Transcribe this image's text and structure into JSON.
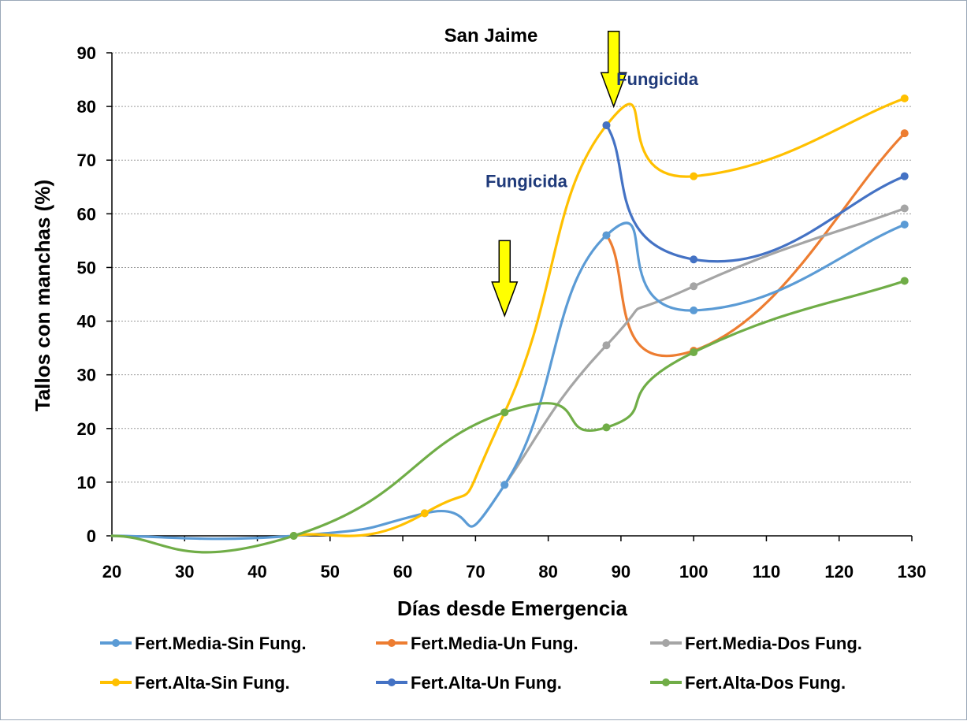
{
  "chart_data": {
    "type": "line",
    "title": "San Jaime",
    "xlabel": "Días desde Emergencia",
    "ylabel": "Tallos con manchas (%)",
    "xlim": [
      20,
      130
    ],
    "ylim": [
      0,
      90
    ],
    "xticks": [
      20,
      30,
      40,
      50,
      60,
      70,
      80,
      90,
      100,
      110,
      120,
      130
    ],
    "yticks": [
      0,
      10,
      20,
      30,
      40,
      50,
      60,
      70,
      80,
      90
    ],
    "grid": "horizontal dotted",
    "legend_position": "bottom",
    "series": [
      {
        "name": "Fert.Media-Sin Fung.",
        "color": "#5b9bd5",
        "x": [
          20,
          45,
          63,
          74,
          88,
          100,
          129
        ],
        "y": [
          0,
          0,
          4.2,
          9.5,
          56,
          42,
          58
        ]
      },
      {
        "name": "Fert.Media-Un Fung.",
        "color": "#ed7d31",
        "x": [
          88,
          100,
          129
        ],
        "y": [
          56,
          34.5,
          75
        ]
      },
      {
        "name": "Fert.Media-Dos Fung.",
        "color": "#a5a5a5",
        "x": [
          74,
          88,
          100,
          129
        ],
        "y": [
          9.5,
          35.5,
          46.5,
          61
        ]
      },
      {
        "name": "Fert.Alta-Sin Fung.",
        "color": "#ffc000",
        "x": [
          45,
          63,
          74,
          88,
          100,
          129
        ],
        "y": [
          0,
          4.2,
          23,
          76.5,
          67,
          81.5
        ]
      },
      {
        "name": "Fert.Alta-Un Fung.",
        "color": "#4472c4",
        "x": [
          88,
          100,
          129
        ],
        "y": [
          76.5,
          51.5,
          67
        ]
      },
      {
        "name": "Fert.Alta-Dos Fung.",
        "color": "#70ad47",
        "x": [
          20,
          45,
          74,
          88,
          100,
          129
        ],
        "y": [
          0,
          0,
          23,
          20.2,
          34.2,
          47.5
        ]
      }
    ],
    "annotations": [
      {
        "text": "Fungicida",
        "x": 77,
        "y": 65
      },
      {
        "text": "Fungicida",
        "x": 95,
        "y": 84
      }
    ],
    "arrows": [
      {
        "x": 74,
        "y_top": 55,
        "y_bottom": 41,
        "color": "#ffff00"
      },
      {
        "x": 89,
        "y_top": 94,
        "y_bottom": 80,
        "color": "#ffff00"
      }
    ]
  }
}
